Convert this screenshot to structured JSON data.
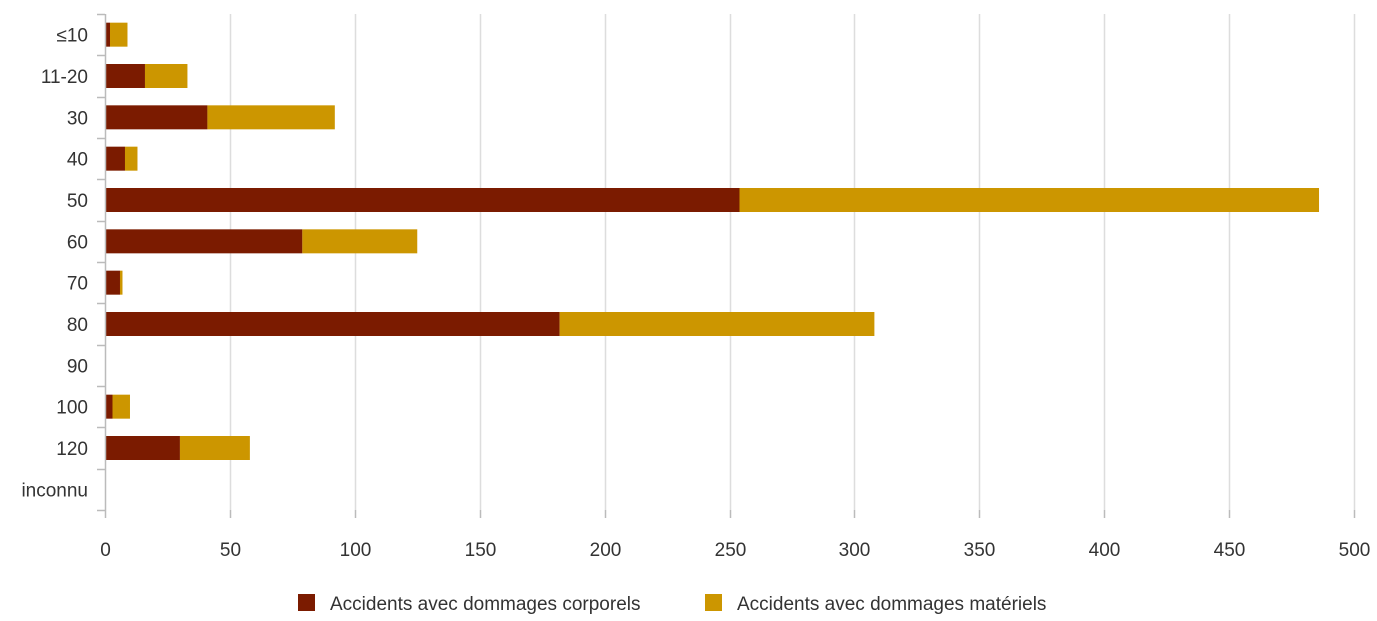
{
  "chart_data": {
    "type": "bar",
    "orientation": "horizontal",
    "stacked": true,
    "categories": [
      "≤10",
      "11-20",
      "30",
      "40",
      "50",
      "60",
      "70",
      "80",
      "90",
      "100",
      "120",
      "inconnu"
    ],
    "series": [
      {
        "name": "Accidents avec dommages corporels",
        "color": "#7b1b00",
        "values": [
          2,
          16,
          41,
          8,
          254,
          79,
          6,
          182,
          0,
          3,
          30,
          0
        ]
      },
      {
        "name": "Accidents avec dommages matériels",
        "color": "#cc9600",
        "values": [
          7,
          17,
          51,
          5,
          232,
          46,
          1,
          126,
          0,
          7,
          28,
          0
        ]
      }
    ],
    "xlim": [
      0,
      500
    ],
    "xticks": [
      0,
      50,
      100,
      150,
      200,
      250,
      300,
      350,
      400,
      450,
      500
    ],
    "xtick_labels": [
      "0",
      "50",
      "100",
      "150",
      "200",
      "250",
      "300",
      "350",
      "400",
      "450",
      "500"
    ],
    "grid": true,
    "legend_position": "bottom-center",
    "title": "",
    "xlabel": "",
    "ylabel": ""
  },
  "colors": {
    "grid": "#dddddd",
    "axis": "#bbbbbb",
    "text": "#333333"
  }
}
